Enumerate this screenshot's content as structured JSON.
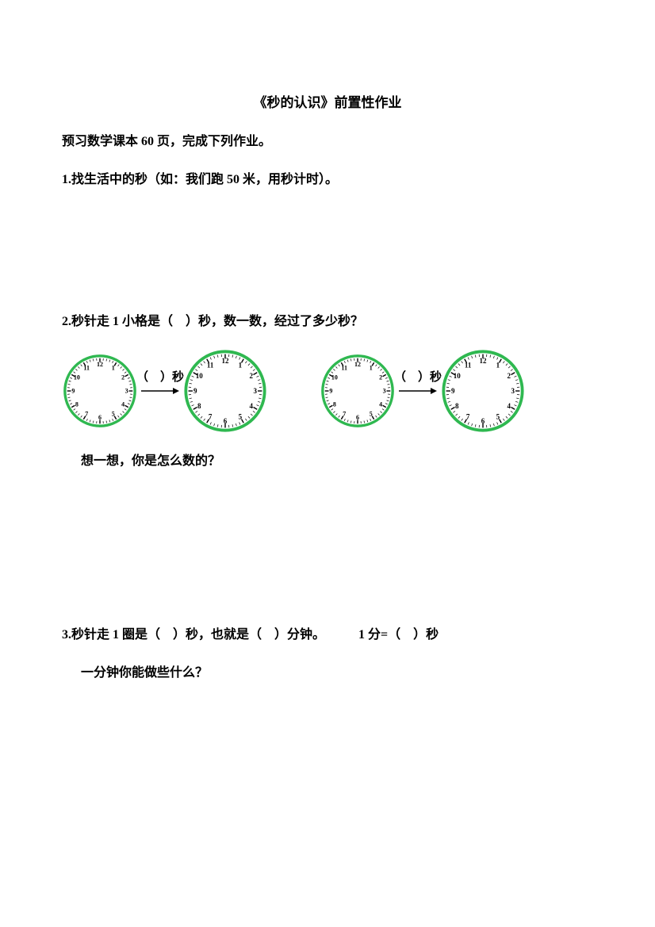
{
  "title": "《秒的认识》前置性作业",
  "instruction": "预习数学课本 60 页，完成下列作业。",
  "q1": "1.找生活中的秒（如：我们跑 50 米，用秒计时）。",
  "q2": {
    "text": "2.秒针走 1 小格是（　）秒，数一数，经过了多少秒？",
    "arrow_label": "（　）秒",
    "sub": "想一想，你是怎么数的？"
  },
  "q3": {
    "line1": "3.秒针走 1 圈是（　）秒，也就是（　）分钟。",
    "eq": "1 分=（　）秒",
    "line2": "一分钟你能做些什么？"
  },
  "clock": {
    "border_color": "#2fb850",
    "face_color": "#ffffff",
    "numbers": [
      "12",
      "1",
      "2",
      "3",
      "4",
      "5",
      "6",
      "7",
      "8",
      "9",
      "10",
      "11"
    ],
    "radius": 46,
    "number_radius": 35,
    "tick_inner": 40,
    "tick_outer": 43,
    "font_size_small": 8,
    "font_size_large": 9
  },
  "arrow": {
    "color": "#000000",
    "width": 48,
    "height": 10
  },
  "sizes": {
    "clock_small": 96,
    "clock_large": 108
  }
}
